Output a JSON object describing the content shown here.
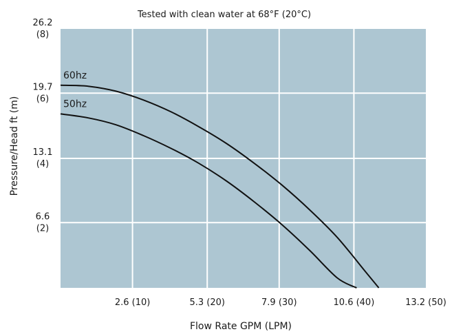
{
  "chart_data": {
    "type": "line",
    "title": "Tested with clean water at 68°F (20°C)",
    "xlabel": "Flow Rate GPM (LPM)",
    "ylabel": "Pressure/Head ft (m)",
    "xlim": [
      0,
      13.2
    ],
    "ylim": [
      0,
      26.2
    ],
    "x_ticks": [
      {
        "value": 2.6,
        "label": "2.6 (10)"
      },
      {
        "value": 5.3,
        "label": "5.3 (20)"
      },
      {
        "value": 7.9,
        "label": "7.9 (30)"
      },
      {
        "value": 10.6,
        "label": "10.6 (40)"
      },
      {
        "value": 13.2,
        "label": "13.2 (50)"
      }
    ],
    "y_ticks": [
      {
        "value": 6.6,
        "line1": "6.6",
        "line2": "(2)"
      },
      {
        "value": 13.1,
        "line1": "13.1",
        "line2": "(4)"
      },
      {
        "value": 19.7,
        "line1": "19.7",
        "line2": "(6)"
      },
      {
        "value": 26.2,
        "line1": "26.2",
        "line2": "(8)"
      }
    ],
    "grid": true,
    "plot_background": "#adc6d2",
    "grid_color": "#ffffff",
    "line_color": "#111111",
    "series": [
      {
        "name": "60hz",
        "x": [
          0,
          1,
          2,
          3,
          4,
          5,
          6,
          7,
          8,
          9,
          10,
          11,
          11.5
        ],
        "y": [
          20.5,
          20.4,
          19.9,
          19.0,
          17.8,
          16.3,
          14.6,
          12.6,
          10.4,
          7.9,
          5.1,
          1.7,
          0
        ]
      },
      {
        "name": "50hz",
        "x": [
          0,
          1,
          2,
          3,
          4,
          5,
          6,
          7,
          8,
          9,
          10,
          10.7
        ],
        "y": [
          17.6,
          17.2,
          16.5,
          15.4,
          14.1,
          12.6,
          10.8,
          8.7,
          6.4,
          3.8,
          1.0,
          0
        ]
      }
    ]
  }
}
